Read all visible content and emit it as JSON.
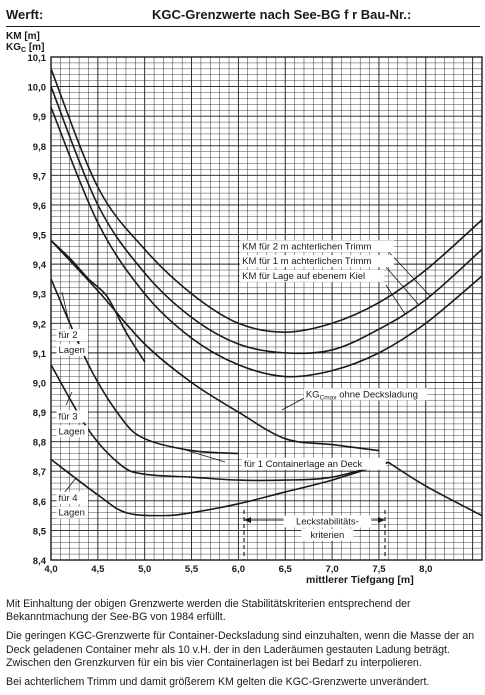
{
  "header": {
    "left": "Werft:",
    "title": "KGC-Grenzwerte nach See-BG f r Bau-Nr.:"
  },
  "chart_data": {
    "type": "line",
    "xlabel": "mittlerer Tiefgang [m]",
    "ylabel_lines": [
      "KM [m]",
      "KGC [m]"
    ],
    "xlim": [
      4.0,
      8.6
    ],
    "ylim": [
      8.4,
      10.1
    ],
    "x_ticks": [
      4.0,
      4.5,
      5.0,
      5.5,
      6.0,
      6.5,
      7.0,
      7.5,
      8.0
    ],
    "x_tick_labels": [
      "4,0",
      "4,5",
      "5,0",
      "5,5",
      "6,0",
      "6,5",
      "7,0",
      "7,5",
      "8,0"
    ],
    "y_ticks": [
      8.4,
      8.5,
      8.6,
      8.7,
      8.8,
      8.9,
      9.0,
      9.1,
      9.2,
      9.3,
      9.4,
      9.5,
      9.6,
      9.7,
      9.8,
      9.9,
      10.0,
      10.1
    ],
    "y_tick_labels": [
      "8,4",
      "8,5",
      "8,6",
      "8,7",
      "8,8",
      "8,9",
      "9,0",
      "9,1",
      "9,2",
      "9,3",
      "9,4",
      "9,5",
      "9,6",
      "9,7",
      "9,8",
      "9,9",
      "10,0",
      "10,1"
    ],
    "grid": true,
    "series": [
      {
        "name": "KM für 2 m achterlichen Trimm",
        "x": [
          4.0,
          4.5,
          5.0,
          5.5,
          6.0,
          6.5,
          7.0,
          7.5,
          8.0,
          8.6
        ],
        "y": [
          10.06,
          9.66,
          9.45,
          9.3,
          9.2,
          9.17,
          9.2,
          9.27,
          9.38,
          9.55
        ]
      },
      {
        "name": "KM für 1 m achterlichen Trimm",
        "x": [
          4.0,
          4.5,
          5.0,
          5.5,
          6.0,
          6.5,
          7.0,
          7.5,
          8.0,
          8.6
        ],
        "y": [
          10.0,
          9.6,
          9.37,
          9.22,
          9.13,
          9.1,
          9.11,
          9.18,
          9.28,
          9.45
        ]
      },
      {
        "name": "KM für Lage auf ebenem Kiel",
        "x": [
          4.0,
          4.5,
          5.0,
          5.5,
          6.0,
          6.5,
          7.0,
          7.5,
          8.0,
          8.6
        ],
        "y": [
          9.93,
          9.54,
          9.3,
          9.15,
          9.06,
          9.02,
          9.04,
          9.1,
          9.2,
          9.36
        ]
      },
      {
        "name": "KGCmax ohne Decksladung",
        "x": [
          4.0,
          4.5,
          5.0,
          5.5,
          6.0,
          6.5,
          7.0,
          7.5
        ],
        "y": [
          9.48,
          9.31,
          9.13,
          9.0,
          8.9,
          8.81,
          8.79,
          8.77
        ]
      },
      {
        "name": "für 2 Lagen",
        "x": [
          4.0,
          4.4,
          4.75,
          5.0,
          5.5,
          6.0
        ],
        "y": [
          9.35,
          9.06,
          8.88,
          8.81,
          8.77,
          8.76
        ]
      },
      {
        "name": "für 3 Lagen",
        "x": [
          4.0,
          4.4,
          4.75,
          5.0,
          5.5,
          6.0,
          6.5,
          7.0,
          7.6
        ],
        "y": [
          9.06,
          8.84,
          8.72,
          8.69,
          8.68,
          8.67,
          8.67,
          8.68,
          8.73
        ]
      },
      {
        "name": "für 4 Lagen",
        "x": [
          4.0,
          4.5,
          4.8,
          5.2,
          5.5,
          6.0,
          6.5,
          7.0,
          7.6
        ],
        "y": [
          8.74,
          8.62,
          8.56,
          8.55,
          8.56,
          8.59,
          8.63,
          8.67,
          8.73
        ]
      },
      {
        "name": "für 1 Containerlage an Deck",
        "x": [
          4.0,
          4.2,
          4.4,
          4.6,
          4.8,
          5.0
        ],
        "y": [
          9.48,
          9.42,
          9.35,
          9.29,
          9.17,
          9.07
        ]
      },
      {
        "name": "Leckstabilitätskriterien",
        "x": [
          7.6,
          8.0,
          8.6
        ],
        "y": [
          8.73,
          8.65,
          8.55
        ]
      }
    ],
    "annotations": [
      {
        "text": "KM für 2 m achterlichen Trimm",
        "x": 6.04,
        "y": 9.45
      },
      {
        "text": "KM für 1 m achterlichen Trimm",
        "x": 6.04,
        "y": 9.4
      },
      {
        "text": "KM für Lage auf ebenem Kiel",
        "x": 6.04,
        "y": 9.35
      },
      {
        "text": "KGCmax ohne Decksladung",
        "x": 6.72,
        "y": 8.95
      },
      {
        "text": "für 2",
        "x": 4.08,
        "y": 9.15
      },
      {
        "text": "Lagen",
        "x": 4.08,
        "y": 9.1
      },
      {
        "text": "für 3",
        "x": 4.08,
        "y": 8.875
      },
      {
        "text": "Lagen",
        "x": 4.08,
        "y": 8.825
      },
      {
        "text": "für 1 Containerlage an Deck",
        "x": 6.06,
        "y": 8.715
      },
      {
        "text": "für 4",
        "x": 4.08,
        "y": 8.6
      },
      {
        "text": "Lagen",
        "x": 4.08,
        "y": 8.55
      },
      {
        "text": "Leckstabilitäts-",
        "x": 6.95,
        "y": 8.52
      },
      {
        "text": "kriterien",
        "x": 6.95,
        "y": 8.475
      }
    ]
  },
  "notes": [
    "Mit Einhaltung der obigen Grenzwerte werden die Stabilitätskriterien entsprechend der Bekanntmachung der See-BG von 1984 erfüllt.",
    "Die geringen KGC-Grenzwerte für Container-Decksladung sind einzuhalten, wenn die Masse der an Deck geladenen Container mehr als 10 v.H. der in den Laderäumen gestauten Ladung beträgt. Zwischen den Grenzkurven für ein bis vier Containerlagen ist bei Bedarf zu interpolieren.",
    "Bei achterlichem Trimm und damit größerem KM gelten die KGC-Grenzwerte unverändert."
  ]
}
